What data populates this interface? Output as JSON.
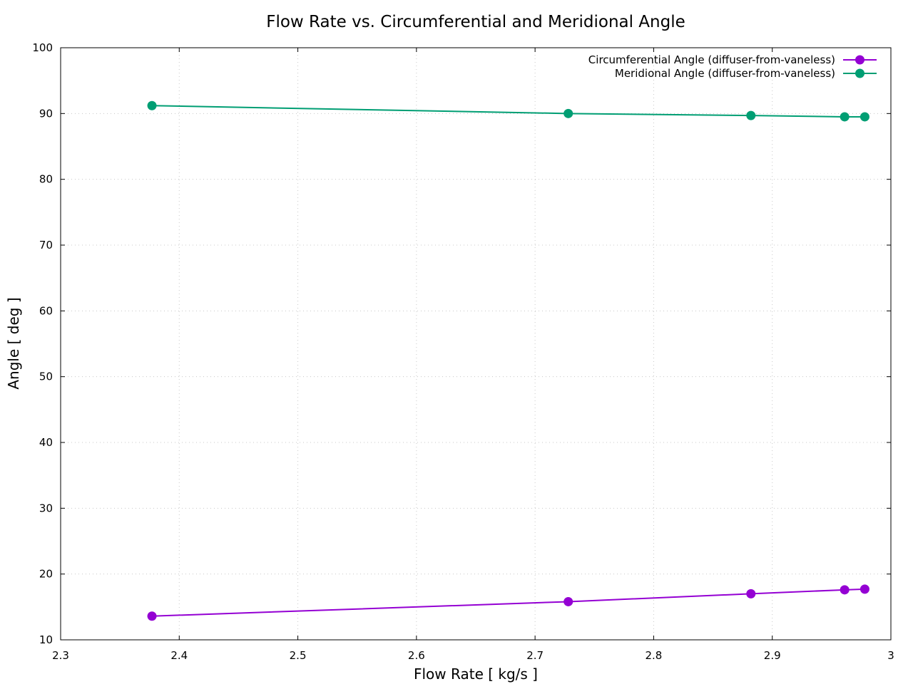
{
  "chart_data": {
    "type": "line",
    "title": "Flow Rate vs. Circumferential and Meridional Angle",
    "xlabel": "Flow Rate [ kg/s ]",
    "ylabel": "Angle [ deg ]",
    "xlim": [
      2.3,
      3.0
    ],
    "ylim": [
      10,
      100
    ],
    "xticks": [
      "2.3",
      "2.4",
      "2.5",
      "2.6",
      "2.7",
      "2.8",
      "2.9",
      "3"
    ],
    "yticks": [
      "10",
      "20",
      "30",
      "40",
      "50",
      "60",
      "70",
      "80",
      "90",
      "100"
    ],
    "grid": true,
    "legend_position": "top-right",
    "series": [
      {
        "name": "Circumferential Angle (diffuser-from-vaneless)",
        "color": "#9400d3",
        "x": [
          2.377,
          2.728,
          2.882,
          2.961,
          2.978
        ],
        "y": [
          13.6,
          15.8,
          17.0,
          17.6,
          17.7
        ]
      },
      {
        "name": "Meridional Angle (diffuser-from-vaneless)",
        "color": "#009e73",
        "x": [
          2.377,
          2.728,
          2.882,
          2.961,
          2.978
        ],
        "y": [
          91.2,
          90.0,
          89.7,
          89.5,
          89.5
        ]
      }
    ]
  }
}
